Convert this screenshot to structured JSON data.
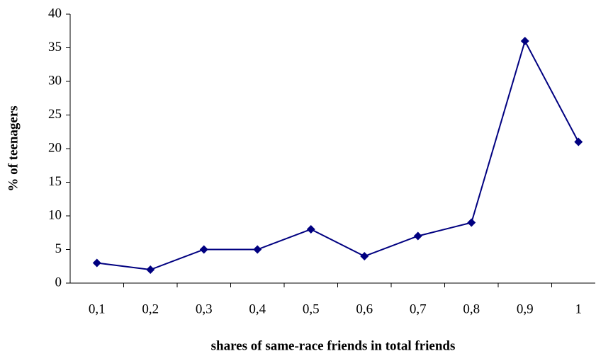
{
  "chart_data": {
    "type": "line",
    "x_label": "shares of same-race friends in total friends",
    "y_label": "% of teenagers",
    "categories": [
      "0,1",
      "0,2",
      "0,3",
      "0,4",
      "0,5",
      "0,6",
      "0,7",
      "0,8",
      "0,9",
      "1"
    ],
    "series": [
      {
        "name": "% of teenagers",
        "color": "#000080",
        "values": [
          3,
          2,
          5,
          5,
          8,
          4,
          7,
          9,
          36,
          21
        ]
      }
    ],
    "ylim": [
      0,
      40
    ],
    "yticks": [
      0,
      5,
      10,
      15,
      20,
      25,
      30,
      35,
      40
    ],
    "grid": false
  }
}
